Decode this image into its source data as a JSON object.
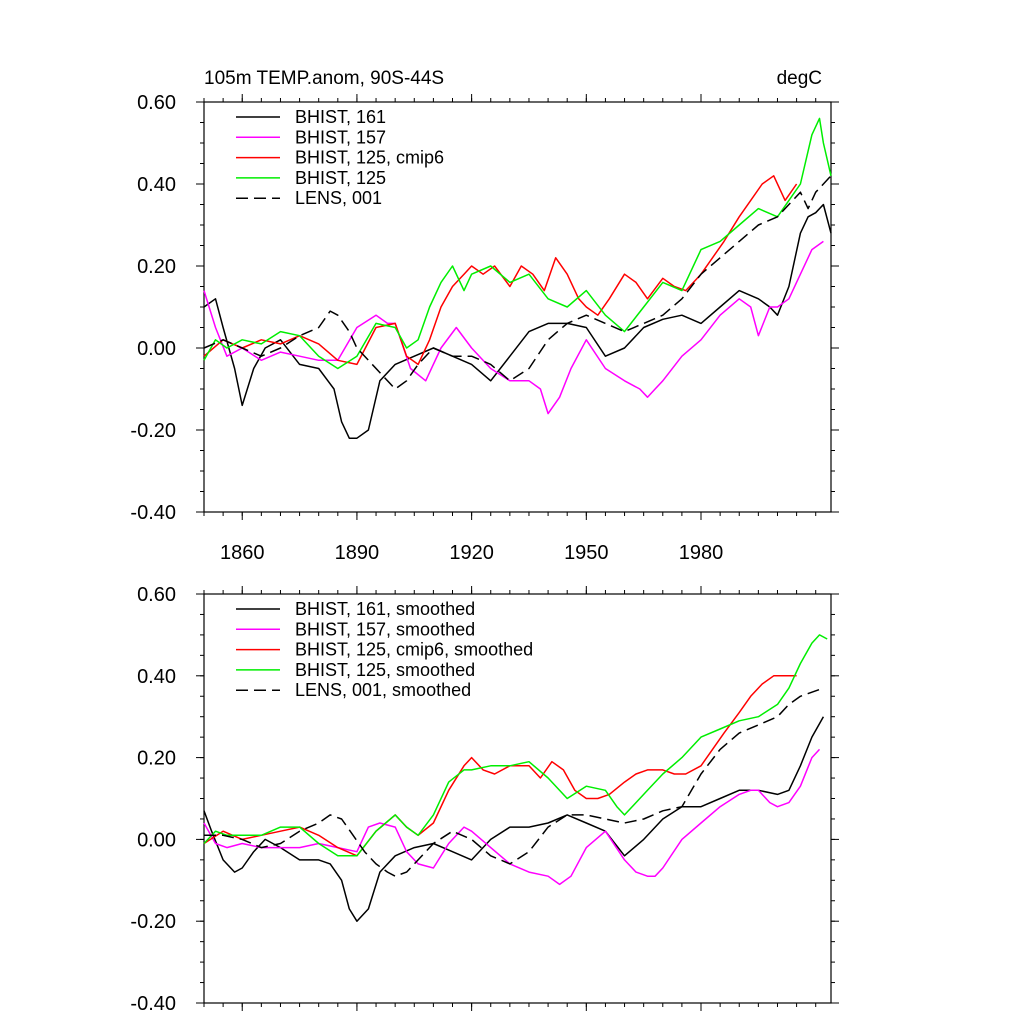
{
  "chart_data": [
    {
      "type": "line",
      "title": "105m TEMP.anom, 90S-44S",
      "units": "degC",
      "xlim": [
        1850,
        2014
      ],
      "ylim": [
        -0.4,
        0.6
      ],
      "yticks": [
        -0.4,
        -0.2,
        0.0,
        0.2,
        0.4,
        0.6
      ],
      "ytick_labels": [
        "-0.40",
        "-0.20",
        "0.00",
        "0.20",
        "0.40",
        "0.60"
      ],
      "xticks": [
        1860,
        1890,
        1920,
        1950,
        1980
      ],
      "xtick_labels": [
        "1860",
        "1890",
        "1920",
        "1950",
        "1980"
      ],
      "legend_position": "top-left",
      "grid": false,
      "series": [
        {
          "name": "BHIST, 161",
          "color": "#000000",
          "dash": "solid",
          "x": [
            1850,
            1853,
            1855,
            1858,
            1860,
            1863,
            1866,
            1870,
            1875,
            1880,
            1884,
            1886,
            1888,
            1890,
            1893,
            1896,
            1900,
            1905,
            1910,
            1915,
            1920,
            1925,
            1930,
            1935,
            1940,
            1945,
            1950,
            1955,
            1960,
            1965,
            1970,
            1975,
            1980,
            1985,
            1990,
            1995,
            1998,
            2000,
            2003,
            2006,
            2008,
            2010,
            2012,
            2014
          ],
          "y": [
            0.1,
            0.12,
            0.05,
            -0.05,
            -0.14,
            -0.05,
            0.0,
            0.02,
            -0.04,
            -0.05,
            -0.1,
            -0.18,
            -0.22,
            -0.22,
            -0.2,
            -0.08,
            -0.04,
            -0.02,
            0.0,
            -0.02,
            -0.04,
            -0.08,
            -0.02,
            0.04,
            0.06,
            0.06,
            0.05,
            -0.02,
            0.0,
            0.05,
            0.07,
            0.08,
            0.06,
            0.1,
            0.14,
            0.12,
            0.1,
            0.08,
            0.15,
            0.28,
            0.32,
            0.33,
            0.35,
            0.28
          ]
        },
        {
          "name": "BHIST, 157",
          "color": "#ff00ff",
          "dash": "solid",
          "x": [
            1850,
            1853,
            1856,
            1860,
            1865,
            1870,
            1875,
            1880,
            1885,
            1890,
            1895,
            1898,
            1900,
            1904,
            1908,
            1912,
            1916,
            1920,
            1925,
            1930,
            1935,
            1938,
            1940,
            1943,
            1946,
            1950,
            1955,
            1960,
            1964,
            1966,
            1968,
            1970,
            1975,
            1980,
            1985,
            1990,
            1993,
            1995,
            1998,
            2000,
            2003,
            2006,
            2009,
            2012
          ],
          "y": [
            0.14,
            0.05,
            -0.02,
            0.0,
            -0.03,
            -0.01,
            -0.02,
            -0.03,
            -0.03,
            0.05,
            0.08,
            0.06,
            0.06,
            -0.05,
            -0.08,
            0.0,
            0.05,
            0.0,
            -0.05,
            -0.08,
            -0.08,
            -0.1,
            -0.16,
            -0.12,
            -0.05,
            0.02,
            -0.05,
            -0.08,
            -0.1,
            -0.12,
            -0.1,
            -0.08,
            -0.02,
            0.02,
            0.08,
            0.12,
            0.1,
            0.03,
            0.1,
            0.1,
            0.12,
            0.18,
            0.24,
            0.26
          ]
        },
        {
          "name": "BHIST, 125, cmip6",
          "color": "#ff0000",
          "dash": "solid",
          "x": [
            1850,
            1855,
            1860,
            1865,
            1870,
            1875,
            1880,
            1885,
            1890,
            1895,
            1900,
            1903,
            1906,
            1909,
            1912,
            1915,
            1918,
            1920,
            1923,
            1926,
            1930,
            1933,
            1936,
            1939,
            1942,
            1945,
            1948,
            1950,
            1953,
            1956,
            1960,
            1963,
            1966,
            1970,
            1973,
            1976,
            1980,
            1983,
            1986,
            1990,
            1993,
            1996,
            1999,
            2002,
            2005
          ],
          "y": [
            -0.02,
            0.02,
            0.0,
            0.02,
            0.01,
            0.03,
            0.01,
            -0.03,
            -0.04,
            0.05,
            0.06,
            -0.02,
            -0.04,
            0.02,
            0.1,
            0.15,
            0.18,
            0.2,
            0.18,
            0.2,
            0.15,
            0.2,
            0.18,
            0.14,
            0.22,
            0.18,
            0.12,
            0.1,
            0.08,
            0.12,
            0.18,
            0.16,
            0.12,
            0.17,
            0.15,
            0.14,
            0.18,
            0.22,
            0.26,
            0.32,
            0.36,
            0.4,
            0.42,
            0.36,
            0.4
          ]
        },
        {
          "name": "BHIST, 125",
          "color": "#00ee00",
          "dash": "solid",
          "x": [
            1850,
            1853,
            1856,
            1860,
            1865,
            1870,
            1875,
            1880,
            1885,
            1890,
            1895,
            1900,
            1903,
            1906,
            1909,
            1912,
            1915,
            1918,
            1920,
            1925,
            1930,
            1935,
            1940,
            1945,
            1950,
            1955,
            1960,
            1965,
            1970,
            1975,
            1980,
            1985,
            1990,
            1995,
            2000,
            2003,
            2006,
            2009,
            2011,
            2012,
            2014
          ],
          "y": [
            -0.03,
            0.02,
            0.0,
            0.02,
            0.01,
            0.04,
            0.03,
            -0.02,
            -0.05,
            -0.02,
            0.06,
            0.05,
            0.0,
            0.02,
            0.1,
            0.16,
            0.2,
            0.14,
            0.18,
            0.2,
            0.16,
            0.18,
            0.12,
            0.1,
            0.14,
            0.08,
            0.04,
            0.1,
            0.16,
            0.14,
            0.24,
            0.26,
            0.3,
            0.34,
            0.32,
            0.36,
            0.4,
            0.52,
            0.56,
            0.5,
            0.42
          ]
        },
        {
          "name": "LENS, 001",
          "color": "#000000",
          "dash": "dashed",
          "x": [
            1850,
            1855,
            1860,
            1865,
            1870,
            1875,
            1880,
            1883,
            1885,
            1888,
            1890,
            1893,
            1896,
            1900,
            1903,
            1906,
            1910,
            1915,
            1920,
            1925,
            1930,
            1935,
            1940,
            1945,
            1950,
            1955,
            1960,
            1965,
            1970,
            1975,
            1980,
            1985,
            1990,
            1995,
            2000,
            2003,
            2006,
            2008,
            2010,
            2012,
            2014
          ],
          "y": [
            0.0,
            0.02,
            0.0,
            -0.02,
            0.0,
            0.03,
            0.05,
            0.09,
            0.08,
            0.04,
            0.0,
            -0.03,
            -0.06,
            -0.1,
            -0.08,
            -0.04,
            0.0,
            -0.02,
            -0.02,
            -0.04,
            -0.08,
            -0.05,
            0.02,
            0.06,
            0.08,
            0.06,
            0.04,
            0.06,
            0.08,
            0.12,
            0.18,
            0.22,
            0.26,
            0.3,
            0.32,
            0.35,
            0.38,
            0.34,
            0.38,
            0.4,
            0.42
          ]
        }
      ]
    },
    {
      "type": "line",
      "xlim": [
        1850,
        2014
      ],
      "ylim": [
        -0.4,
        0.6
      ],
      "yticks": [
        -0.4,
        -0.2,
        0.0,
        0.2,
        0.4,
        0.6
      ],
      "ytick_labels": [
        "-0.40",
        "-0.20",
        "0.00",
        "0.20",
        "0.40",
        "0.60"
      ],
      "xticks": [
        1860,
        1890,
        1920,
        1950,
        1980
      ],
      "legend_position": "top-left",
      "grid": false,
      "series": [
        {
          "name": "BHIST, 161, smoothed",
          "color": "#000000",
          "dash": "solid",
          "x": [
            1850,
            1852,
            1855,
            1858,
            1860,
            1863,
            1866,
            1870,
            1875,
            1880,
            1883,
            1886,
            1888,
            1890,
            1893,
            1896,
            1900,
            1905,
            1910,
            1915,
            1920,
            1925,
            1930,
            1935,
            1940,
            1945,
            1950,
            1955,
            1960,
            1965,
            1970,
            1975,
            1980,
            1985,
            1990,
            1995,
            2000,
            2003,
            2006,
            2009,
            2012
          ],
          "y": [
            0.07,
            0.02,
            -0.05,
            -0.08,
            -0.07,
            -0.03,
            0.0,
            -0.02,
            -0.05,
            -0.05,
            -0.06,
            -0.1,
            -0.17,
            -0.2,
            -0.17,
            -0.08,
            -0.04,
            -0.02,
            -0.01,
            -0.03,
            -0.05,
            0.0,
            0.03,
            0.03,
            0.04,
            0.06,
            0.04,
            0.02,
            -0.04,
            0.0,
            0.05,
            0.08,
            0.08,
            0.1,
            0.12,
            0.12,
            0.11,
            0.12,
            0.18,
            0.25,
            0.3
          ]
        },
        {
          "name": "BHIST, 157, smoothed",
          "color": "#ff00ff",
          "dash": "solid",
          "x": [
            1850,
            1853,
            1856,
            1860,
            1865,
            1870,
            1875,
            1880,
            1885,
            1890,
            1893,
            1896,
            1900,
            1903,
            1906,
            1910,
            1914,
            1918,
            1920,
            1925,
            1930,
            1935,
            1940,
            1943,
            1946,
            1950,
            1955,
            1960,
            1963,
            1966,
            1968,
            1970,
            1975,
            1980,
            1985,
            1990,
            1993,
            1995,
            1998,
            2000,
            2003,
            2006,
            2009,
            2011
          ],
          "y": [
            0.04,
            -0.01,
            -0.02,
            -0.01,
            -0.02,
            -0.02,
            -0.02,
            -0.01,
            -0.02,
            -0.03,
            0.03,
            0.04,
            0.03,
            -0.03,
            -0.06,
            -0.07,
            -0.01,
            0.03,
            0.02,
            -0.02,
            -0.06,
            -0.08,
            -0.09,
            -0.11,
            -0.09,
            -0.02,
            0.02,
            -0.05,
            -0.08,
            -0.09,
            -0.09,
            -0.07,
            0.0,
            0.04,
            0.08,
            0.11,
            0.12,
            0.12,
            0.09,
            0.08,
            0.09,
            0.13,
            0.2,
            0.22
          ]
        },
        {
          "name": "BHIST, 125, cmip6, smoothed",
          "color": "#ff0000",
          "dash": "solid",
          "x": [
            1850,
            1855,
            1860,
            1865,
            1870,
            1875,
            1880,
            1885,
            1890,
            1895,
            1900,
            1903,
            1906,
            1910,
            1914,
            1918,
            1920,
            1923,
            1926,
            1930,
            1935,
            1938,
            1941,
            1944,
            1947,
            1950,
            1953,
            1956,
            1960,
            1963,
            1966,
            1970,
            1973,
            1976,
            1980,
            1983,
            1986,
            1990,
            1993,
            1996,
            1999,
            2002,
            2005
          ],
          "y": [
            -0.01,
            0.02,
            0.0,
            0.01,
            0.02,
            0.03,
            0.01,
            -0.02,
            -0.04,
            0.02,
            0.06,
            0.03,
            0.01,
            0.04,
            0.12,
            0.18,
            0.2,
            0.17,
            0.16,
            0.18,
            0.18,
            0.15,
            0.19,
            0.17,
            0.12,
            0.1,
            0.1,
            0.11,
            0.14,
            0.16,
            0.17,
            0.17,
            0.16,
            0.16,
            0.18,
            0.22,
            0.26,
            0.31,
            0.35,
            0.38,
            0.4,
            0.4,
            0.4
          ]
        },
        {
          "name": "BHIST, 125, smoothed",
          "color": "#00ee00",
          "dash": "solid",
          "x": [
            1850,
            1853,
            1856,
            1860,
            1865,
            1870,
            1875,
            1880,
            1885,
            1890,
            1895,
            1900,
            1903,
            1906,
            1910,
            1914,
            1918,
            1920,
            1925,
            1930,
            1935,
            1940,
            1945,
            1950,
            1955,
            1958,
            1960,
            1963,
            1966,
            1970,
            1975,
            1980,
            1985,
            1990,
            1995,
            2000,
            2003,
            2006,
            2009,
            2011,
            2013
          ],
          "y": [
            -0.01,
            0.02,
            0.01,
            0.01,
            0.01,
            0.03,
            0.03,
            -0.01,
            -0.04,
            -0.04,
            0.02,
            0.06,
            0.03,
            0.01,
            0.06,
            0.14,
            0.17,
            0.17,
            0.18,
            0.18,
            0.19,
            0.15,
            0.1,
            0.13,
            0.12,
            0.08,
            0.06,
            0.09,
            0.12,
            0.16,
            0.2,
            0.25,
            0.27,
            0.29,
            0.3,
            0.33,
            0.37,
            0.43,
            0.48,
            0.5,
            0.49
          ]
        },
        {
          "name": "LENS, 001, smoothed",
          "color": "#000000",
          "dash": "dashed",
          "x": [
            1850,
            1855,
            1860,
            1865,
            1870,
            1875,
            1880,
            1883,
            1886,
            1889,
            1892,
            1895,
            1898,
            1900,
            1903,
            1906,
            1910,
            1915,
            1920,
            1925,
            1930,
            1935,
            1940,
            1945,
            1950,
            1955,
            1960,
            1965,
            1970,
            1975,
            1980,
            1985,
            1990,
            1995,
            2000,
            2003,
            2006,
            2009,
            2012
          ],
          "y": [
            0.01,
            0.01,
            0.0,
            -0.02,
            -0.01,
            0.02,
            0.04,
            0.06,
            0.05,
            0.01,
            -0.03,
            -0.06,
            -0.08,
            -0.09,
            -0.08,
            -0.05,
            -0.01,
            0.02,
            0.0,
            -0.04,
            -0.06,
            -0.03,
            0.03,
            0.06,
            0.06,
            0.05,
            0.04,
            0.05,
            0.07,
            0.08,
            0.16,
            0.22,
            0.26,
            0.28,
            0.3,
            0.33,
            0.35,
            0.36,
            0.37
          ]
        }
      ]
    }
  ]
}
